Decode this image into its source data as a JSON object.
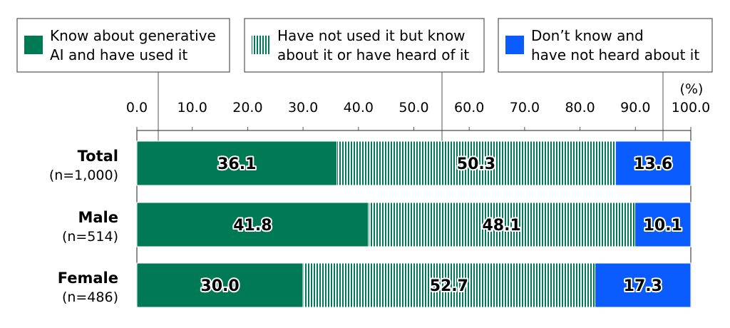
{
  "chart_data": {
    "type": "bar",
    "stacked": true,
    "orientation": "horizontal",
    "unit": "(%)",
    "xlim": [
      0,
      100
    ],
    "xticks": [
      "0.0",
      "10.0",
      "20.0",
      "30.0",
      "40.0",
      "50.0",
      "60.0",
      "70.0",
      "80.0",
      "90.0",
      "100.0"
    ],
    "grid": false,
    "legend_position": "top",
    "categories": [
      {
        "name": "Total",
        "n": "(n=1,000)"
      },
      {
        "name": "Male",
        "n": "(n=514)"
      },
      {
        "name": "Female",
        "n": "(n=486)"
      }
    ],
    "series": [
      {
        "name": [
          "Know about generative",
          "AI and have used it"
        ],
        "color": "#007a55",
        "pattern": "solid",
        "values": [
          36.1,
          41.8,
          30.0
        ],
        "labels": [
          "36.1",
          "41.8",
          "30.0"
        ]
      },
      {
        "name": [
          "Have not used it but know",
          "about it or have heard of it"
        ],
        "color": "#007a55",
        "pattern": "vertical-stripes",
        "values": [
          50.3,
          48.1,
          52.7
        ],
        "labels": [
          "50.3",
          "48.1",
          "52.7"
        ]
      },
      {
        "name": [
          "Don’t know and",
          "have not heard about it"
        ],
        "color": "#0a5cff",
        "pattern": "solid",
        "values": [
          13.6,
          10.1,
          17.3
        ],
        "labels": [
          "13.6",
          "10.1",
          "17.3"
        ]
      }
    ]
  }
}
